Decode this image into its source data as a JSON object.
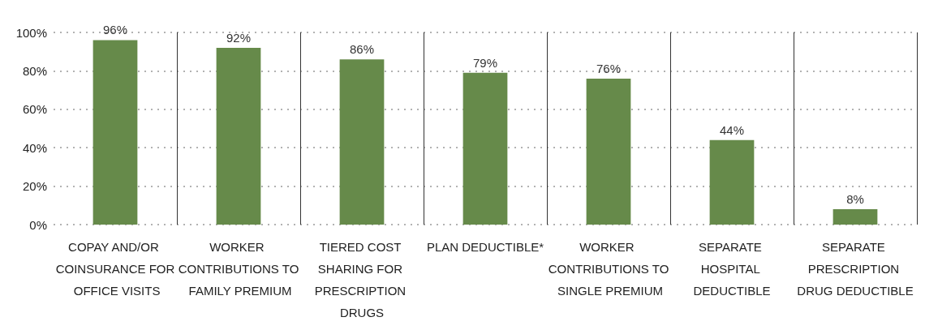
{
  "chart_data": {
    "type": "bar",
    "categories": [
      "COPAY AND/OR COINSURANCE FOR OFFICE VISITS",
      "WORKER CONTRIBUTIONS TO FAMILY PREMIUM",
      "TIERED COST SHARING FOR PRESCRIPTION DRUGS",
      "PLAN DEDUCTIBLE*",
      "WORKER CONTRIBUTIONS TO SINGLE PREMIUM",
      "SEPARATE HOSPITAL DEDUCTIBLE",
      "SEPARATE PRESCRIPTION DRUG DEDUCTIBLE"
    ],
    "values": [
      96,
      92,
      86,
      79,
      76,
      44,
      8
    ],
    "color": "#668a4a",
    "ylim": [
      0,
      100
    ],
    "yticks": [
      {
        "value": 0,
        "label": "0%"
      },
      {
        "value": 20,
        "label": "20%"
      },
      {
        "value": 40,
        "label": "40%"
      },
      {
        "value": 60,
        "label": "60%"
      },
      {
        "value": 80,
        "label": "80%"
      },
      {
        "value": 100,
        "label": "100%"
      }
    ],
    "value_labels": [
      "96%",
      "92%",
      "86%",
      "79%",
      "76%",
      "44%",
      "8%"
    ],
    "grid": true
  }
}
